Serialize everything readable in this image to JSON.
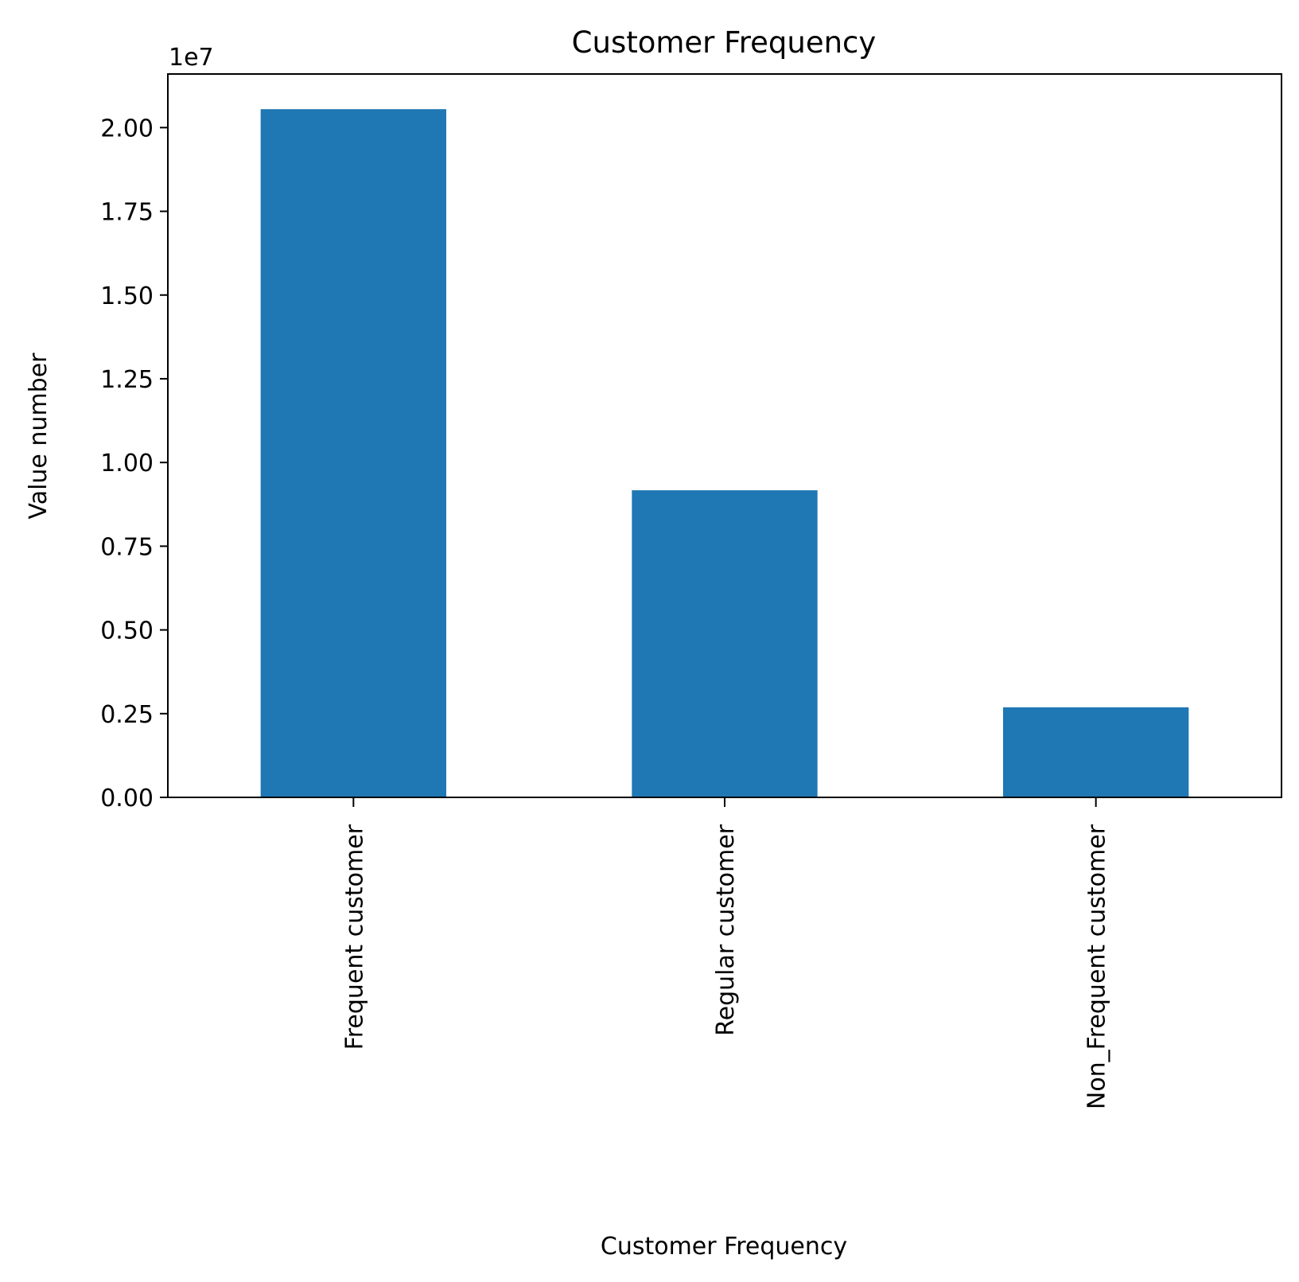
{
  "chart_data": {
    "type": "bar",
    "title": "Customer Frequency",
    "xlabel": "Customer Frequency",
    "ylabel": "Value number",
    "y_offset_label": "1e7",
    "categories": [
      "Frequent customer",
      "Regular customer",
      "Non_Frequent customer"
    ],
    "values": [
      20550000,
      9170000,
      2690000
    ],
    "ylim": [
      0,
      21600000
    ],
    "y_ticks": [
      0,
      2500000,
      5000000,
      7500000,
      10000000,
      12500000,
      15000000,
      17500000,
      20000000
    ],
    "y_tick_labels": [
      "0.00",
      "0.25",
      "0.50",
      "0.75",
      "1.00",
      "1.25",
      "1.50",
      "1.75",
      "2.00"
    ],
    "bar_color": "#1f77b4",
    "grid": false,
    "legend": "none"
  }
}
